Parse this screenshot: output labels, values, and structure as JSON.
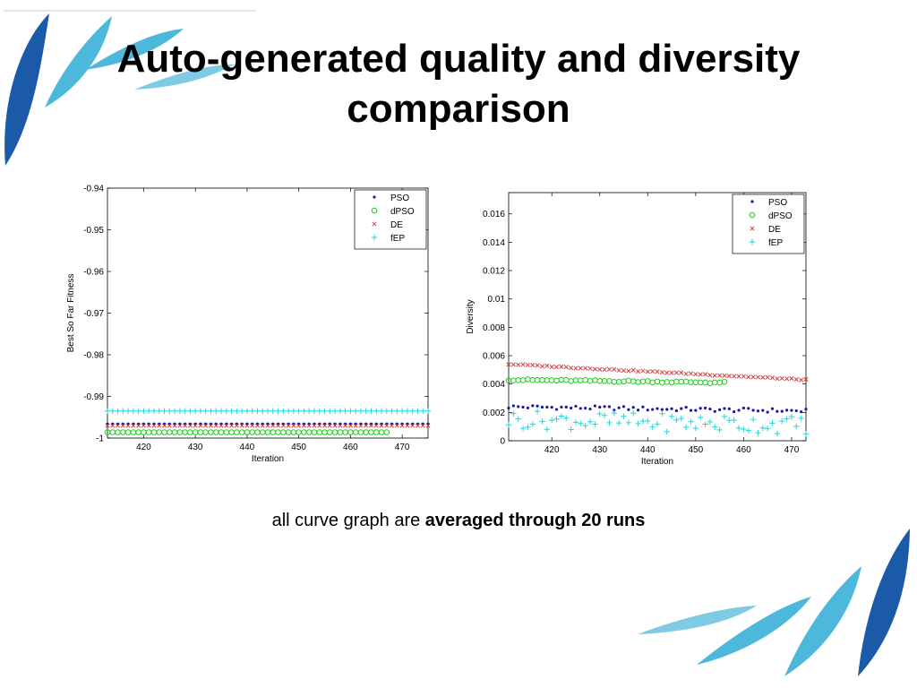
{
  "slide": {
    "title_line1": "Auto-generated quality and diversity",
    "title_line2": "comparison",
    "caption_prefix": "all curve graph are ",
    "caption_bold": "averaged through 20 runs"
  },
  "colors": {
    "accent_dark": "#1a5aa8",
    "accent_light": "#4db8dc"
  },
  "chart_data": [
    {
      "type": "scatter",
      "xlabel": "Iteration",
      "ylabel": "Best So Far Fitness",
      "xlim": [
        413,
        475
      ],
      "ylim": [
        -1.0,
        -0.94
      ],
      "xticks": [
        420,
        430,
        440,
        450,
        460,
        470
      ],
      "yticks": [
        -1,
        -0.99,
        -0.98,
        -0.97,
        -0.96,
        -0.95,
        -0.94
      ],
      "ytick_labels": [
        "-1",
        "-0.99",
        "-0.98",
        "-0.97",
        "-0.96",
        "-0.95",
        "-0.94"
      ],
      "legend_position": "top-right",
      "series": [
        {
          "name": "PSO",
          "marker": "dot",
          "color": "#1a1aa0",
          "x_range": [
            413,
            475
          ],
          "y": -0.9966
        },
        {
          "name": "dPSO",
          "marker": "circle",
          "color": "#22cc22",
          "x_range": [
            413,
            467
          ],
          "y": -0.9986
        },
        {
          "name": "DE",
          "marker": "x",
          "color": "#d04040",
          "x_range": [
            413,
            475
          ],
          "y": -0.997
        },
        {
          "name": "fEP",
          "marker": "plus",
          "color": "#20d8d8",
          "x_range": [
            413,
            475
          ],
          "y": -0.9935
        }
      ]
    },
    {
      "type": "scatter",
      "xlabel": "Iteration",
      "ylabel": "Diversity",
      "xlim": [
        411,
        473
      ],
      "ylim": [
        0,
        0.0175
      ],
      "xticks": [
        420,
        430,
        440,
        450,
        460,
        470
      ],
      "yticks": [
        0,
        0.002,
        0.004,
        0.006,
        0.008,
        0.01,
        0.012,
        0.014,
        0.016
      ],
      "ytick_labels": [
        "0",
        "0.002",
        "0.004",
        "0.006",
        "0.008",
        "0.01",
        "0.012",
        "0.014",
        "0.016"
      ],
      "legend_position": "top-right",
      "series": [
        {
          "name": "PSO",
          "marker": "dot",
          "color": "#1a1aa0",
          "x_range": [
            411,
            473
          ],
          "y_start": 0.0024,
          "y_end": 0.0021
        },
        {
          "name": "dPSO",
          "marker": "circle",
          "color": "#22cc22",
          "x_range": [
            411,
            456
          ],
          "y_start": 0.0043,
          "y_end": 0.0041
        },
        {
          "name": "DE",
          "marker": "x",
          "color": "#d04040",
          "x_range": [
            411,
            473
          ],
          "y_start": 0.0054,
          "y_end": 0.0043
        },
        {
          "name": "fEP",
          "marker": "plus",
          "color": "#20d8d8",
          "x_range": [
            411,
            473
          ],
          "y_start": 0.0015,
          "y_end": 0.0011
        }
      ]
    }
  ]
}
